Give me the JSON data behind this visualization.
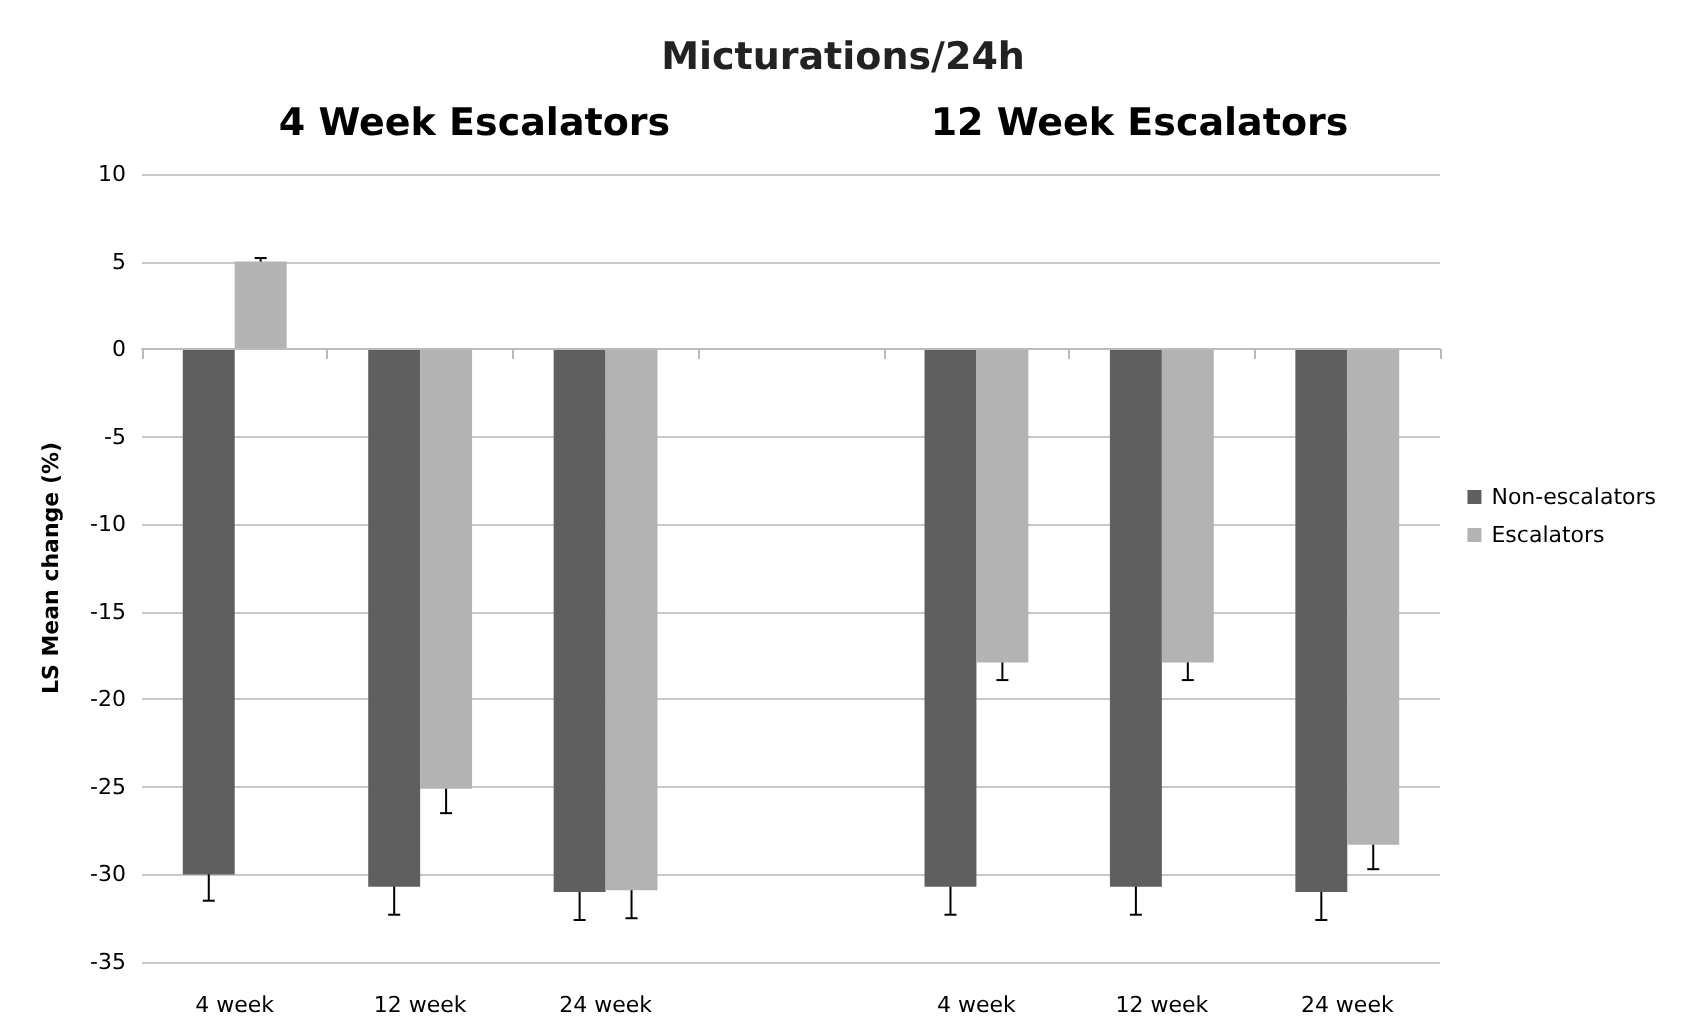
{
  "chart_data": {
    "type": "bar",
    "title": "Micturations/24h",
    "ylabel": "LS Mean change (%)",
    "annotations": [
      "4 Week Escalators",
      "12 Week Escalators"
    ],
    "categories": [
      "4 week",
      "12 week",
      "24 week",
      null,
      "4 week",
      "12 week",
      "24 week"
    ],
    "series": [
      {
        "name": "Non-escalators",
        "color": "#5f5f5f",
        "values": [
          -30,
          -30.7,
          -31,
          null,
          -30.7,
          -30.7,
          -31
        ],
        "errors": [
          1.5,
          1.6,
          1.6,
          null,
          1.6,
          1.6,
          1.6
        ]
      },
      {
        "name": "Escalators",
        "color": "#b3b3b3",
        "values": [
          5,
          -25.1,
          -30.9,
          null,
          -17.9,
          -17.9,
          -28.3
        ],
        "errors": [
          0.2,
          1.4,
          1.6,
          null,
          1.0,
          1.0,
          1.4
        ]
      }
    ],
    "ylim": [
      -35,
      10
    ],
    "yticks": [
      -35,
      -30,
      -25,
      -20,
      -15,
      -10,
      -5,
      0,
      5,
      10
    ],
    "grid": "y",
    "legend": "right"
  }
}
